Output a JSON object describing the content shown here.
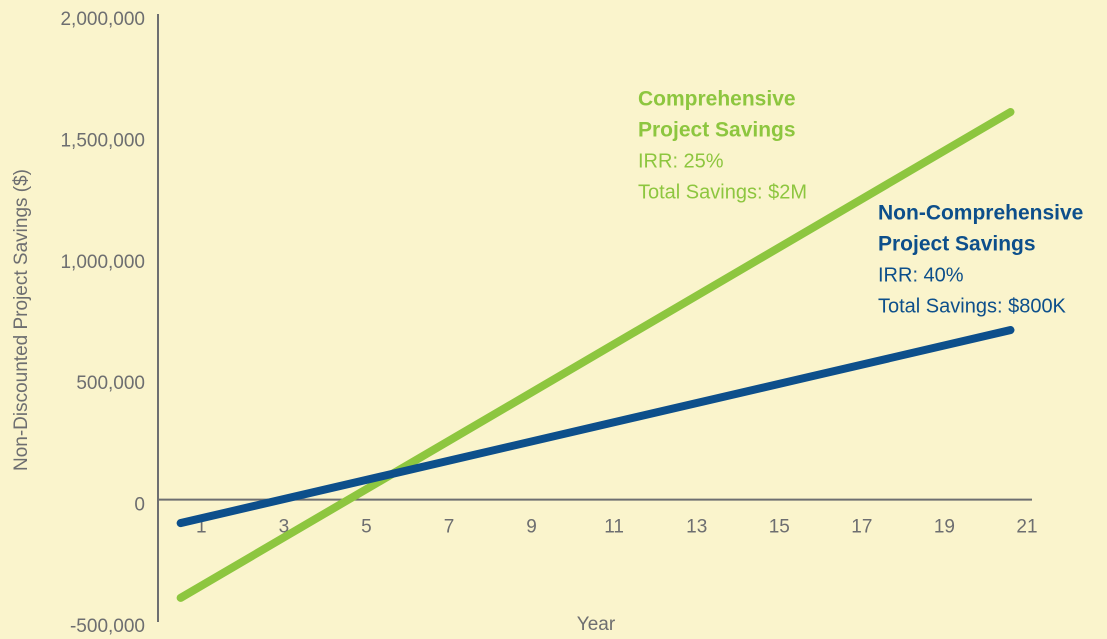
{
  "chart_data": {
    "type": "line",
    "xlabel": "Year",
    "ylabel": "Non-Discounted Project Savings ($)",
    "x": [
      0.5,
      20.6
    ],
    "series": [
      {
        "name": "Comprehensive Project Savings",
        "color": "#8dc63f",
        "values": [
          -380000,
          1621000
        ]
      },
      {
        "name": "Non-Comprehensive Project Savings",
        "color": "#0d4f8b",
        "values": [
          -72000,
          723000
        ]
      }
    ],
    "xlim": [
      0,
      21
    ],
    "xticks": [
      1,
      3,
      5,
      7,
      9,
      11,
      13,
      15,
      17,
      19,
      21
    ],
    "ylim": [
      -500000,
      2000000
    ],
    "yticks": [
      {
        "value": -500000,
        "label": "-500,000"
      },
      0,
      {
        "value": 500000,
        "label": "500,000"
      },
      {
        "value": 1000000,
        "label": "1,000,000"
      },
      {
        "value": 1500000,
        "label": "1,500,000"
      },
      {
        "value": 2000000,
        "label": "2,000,000"
      }
    ],
    "annotations": [
      {
        "title_lines": [
          "Comprehensive",
          "Project Savings"
        ],
        "lines": [
          "IRR: 25%",
          "Total Savings: $2M"
        ],
        "color": "#8dc63f"
      },
      {
        "title_lines": [
          "Non-Comprehensive",
          "Project Savings"
        ],
        "lines": [
          "IRR: 40%",
          "Total Savings: $800K"
        ],
        "color": "#0d4f8b"
      }
    ]
  }
}
